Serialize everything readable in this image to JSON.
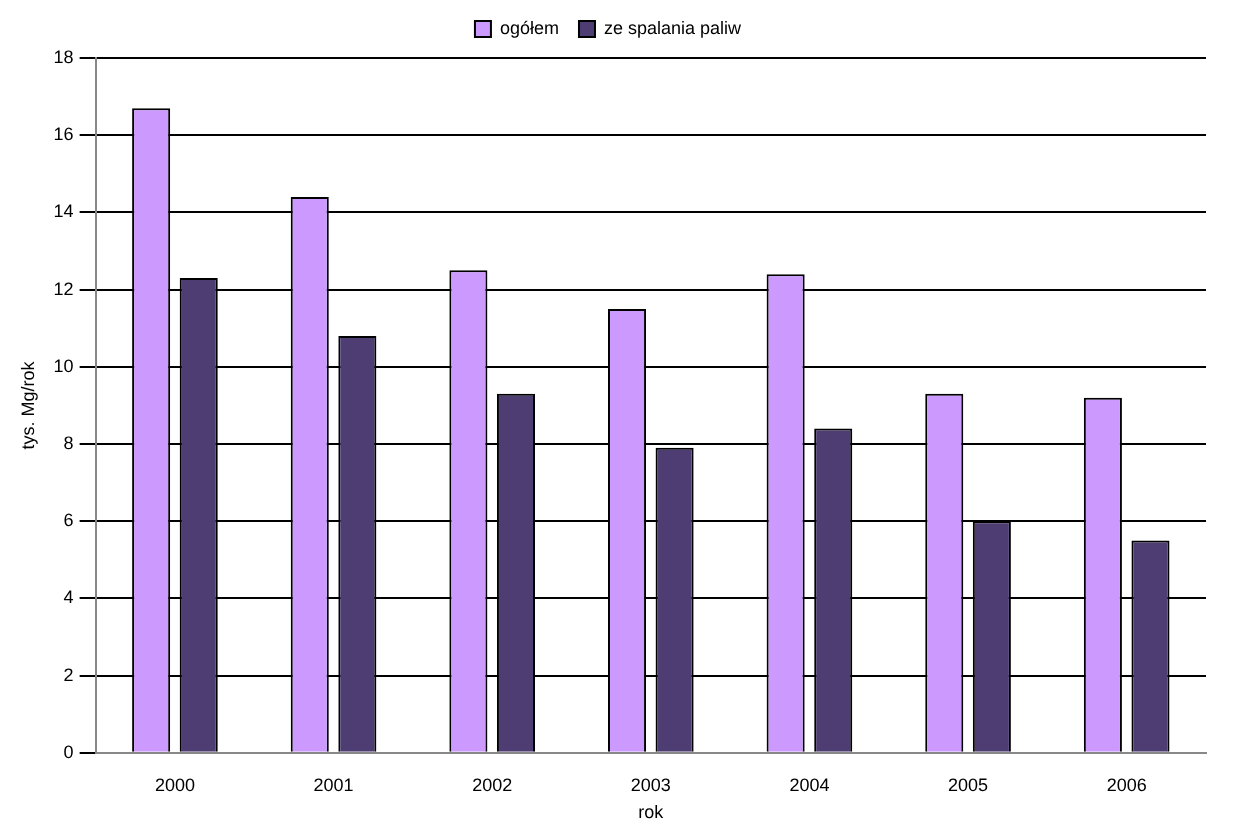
{
  "chart_data": {
    "type": "bar",
    "xlabel": "rok",
    "ylabel": "tys. Mg/rok",
    "categories": [
      "2000",
      "2001",
      "2002",
      "2003",
      "2004",
      "2005",
      "2006"
    ],
    "series": [
      {
        "name": "ogółem",
        "color": "#cc99ff",
        "values": [
          16.7,
          14.4,
          12.5,
          11.5,
          12.4,
          9.3,
          9.2
        ]
      },
      {
        "name": "ze spalania paliw",
        "color": "#4d3d73",
        "values": [
          12.3,
          10.8,
          9.3,
          7.9,
          8.4,
          6.0,
          5.5
        ]
      }
    ],
    "ylim": [
      0,
      18
    ],
    "yticks": [
      0,
      2,
      4,
      6,
      8,
      10,
      12,
      14,
      16,
      18
    ],
    "grid": "y",
    "legend": "top"
  }
}
